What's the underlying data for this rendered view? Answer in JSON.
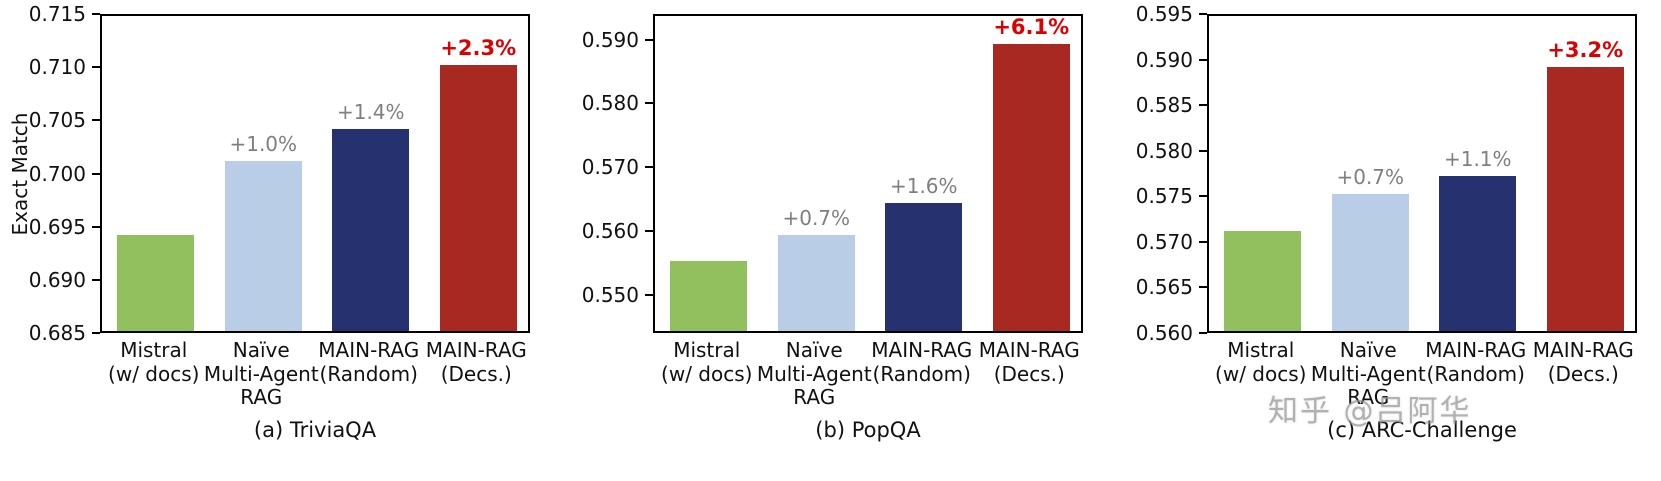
{
  "style": {
    "bar_colors": [
      "#92c05e",
      "#b9cee6",
      "#26316f",
      "#a82822"
    ],
    "annotation_color": "#7f7f7f",
    "annotation_highlight_color": "#dd0000",
    "axis_color": "#000000"
  },
  "watermark": "知乎 @吕阿华",
  "chart_data": [
    {
      "type": "bar",
      "title": "(a) TriviaQA",
      "ylabel": "Exact Match",
      "categories": [
        "Mistral\n(w/ docs)",
        "Naïve\nMulti-Agent\nRAG",
        "MAIN-RAG\n(Random)",
        "MAIN-RAG\n(Decs.)"
      ],
      "values": [
        0.694,
        0.701,
        0.704,
        0.71
      ],
      "annotations": [
        "",
        "+1.0%",
        "+1.4%",
        "+2.3%"
      ],
      "ylim": [
        0.685,
        0.715
      ],
      "yticks": [
        0.685,
        0.69,
        0.695,
        0.7,
        0.705,
        0.71,
        0.715
      ],
      "ytick_labels": [
        "0.685",
        "0.690",
        "0.695",
        "0.700",
        "0.705",
        "0.710",
        "0.715"
      ],
      "grid": false,
      "legend": "none"
    },
    {
      "type": "bar",
      "title": "(b) PopQA",
      "ylabel": "",
      "categories": [
        "Mistral\n(w/ docs)",
        "Naïve\nMulti-Agent\nRAG",
        "MAIN-RAG\n(Random)",
        "MAIN-RAG\n(Decs.)"
      ],
      "values": [
        0.555,
        0.559,
        0.564,
        0.589
      ],
      "annotations": [
        "",
        "+0.7%",
        "+1.6%",
        "+6.1%"
      ],
      "ylim": [
        0.544,
        0.594
      ],
      "yticks": [
        0.55,
        0.56,
        0.57,
        0.58,
        0.59
      ],
      "ytick_labels": [
        "0.550",
        "0.560",
        "0.570",
        "0.580",
        "0.590"
      ],
      "grid": false,
      "legend": "none"
    },
    {
      "type": "bar",
      "title": "(c) ARC-Challenge",
      "ylabel": "",
      "categories": [
        "Mistral\n(w/ docs)",
        "Naïve\nMulti-Agent\nRAG",
        "MAIN-RAG\n(Random)",
        "MAIN-RAG\n(Decs.)"
      ],
      "values": [
        0.571,
        0.575,
        0.577,
        0.589
      ],
      "annotations": [
        "",
        "+0.7%",
        "+1.1%",
        "+3.2%"
      ],
      "ylim": [
        0.56,
        0.595
      ],
      "yticks": [
        0.56,
        0.565,
        0.57,
        0.575,
        0.58,
        0.585,
        0.59,
        0.595
      ],
      "ytick_labels": [
        "0.560",
        "0.565",
        "0.570",
        "0.575",
        "0.580",
        "0.585",
        "0.590",
        "0.595"
      ],
      "grid": false,
      "legend": "none"
    }
  ]
}
